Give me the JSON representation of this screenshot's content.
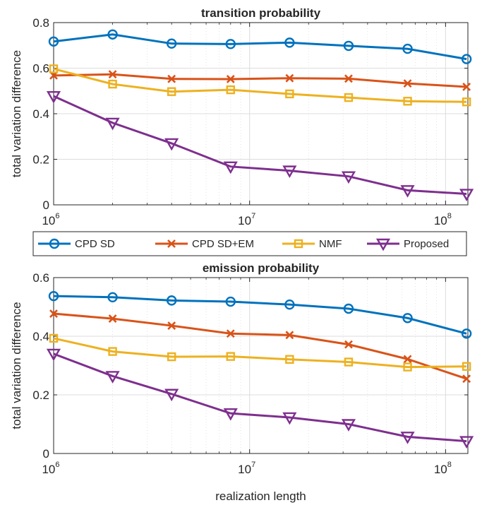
{
  "chart_data": [
    {
      "type": "line",
      "title": "transition probability",
      "xlabel": "",
      "ylabel": "total variation difference",
      "xscale": "log",
      "xlim": [
        1000000,
        130000000
      ],
      "ylim": [
        0,
        0.8
      ],
      "yticks": [
        0,
        0.2,
        0.4,
        0.6,
        0.8
      ],
      "ytick_labels": [
        "0",
        "0.2",
        "0.4",
        "0.6",
        "0.8"
      ],
      "xtick_base": "10",
      "xtick_exponents": [
        "6",
        "7",
        "8"
      ],
      "grid": true,
      "x": [
        1000000,
        2000000,
        4000000,
        8000000,
        16000000,
        32000000,
        64000000,
        128000000
      ],
      "series": [
        {
          "name": "CPD SD",
          "color": "#0072BD",
          "marker": "circle",
          "values": [
            0.717,
            0.748,
            0.708,
            0.706,
            0.712,
            0.698,
            0.685,
            0.64
          ]
        },
        {
          "name": "CPD SD+EM",
          "color": "#D95319",
          "marker": "x",
          "values": [
            0.568,
            0.573,
            0.553,
            0.552,
            0.556,
            0.554,
            0.533,
            0.518
          ]
        },
        {
          "name": "NMF",
          "color": "#EDB120",
          "marker": "square",
          "values": [
            0.597,
            0.53,
            0.497,
            0.505,
            0.487,
            0.471,
            0.455,
            0.452
          ]
        },
        {
          "name": "Proposed",
          "color": "#7E2F8E",
          "marker": "triangle-down",
          "values": [
            0.477,
            0.36,
            0.27,
            0.168,
            0.15,
            0.125,
            0.064,
            0.048
          ]
        }
      ]
    },
    {
      "type": "line",
      "title": "emission probability",
      "xlabel": "realization length",
      "ylabel": "total variation difference",
      "xscale": "log",
      "xlim": [
        1000000,
        130000000
      ],
      "ylim": [
        0,
        0.6
      ],
      "yticks": [
        0,
        0.2,
        0.4,
        0.6
      ],
      "ytick_labels": [
        "0",
        "0.2",
        "0.4",
        "0.6"
      ],
      "xtick_base": "10",
      "xtick_exponents": [
        "6",
        "7",
        "8"
      ],
      "grid": true,
      "x": [
        1000000,
        2000000,
        4000000,
        8000000,
        16000000,
        32000000,
        64000000,
        128000000
      ],
      "series": [
        {
          "name": "CPD SD",
          "color": "#0072BD",
          "marker": "circle",
          "values": [
            0.537,
            0.533,
            0.522,
            0.518,
            0.508,
            0.494,
            0.462,
            0.409
          ]
        },
        {
          "name": "CPD SD+EM",
          "color": "#D95319",
          "marker": "x",
          "values": [
            0.477,
            0.46,
            0.436,
            0.409,
            0.404,
            0.372,
            0.322,
            0.255
          ]
        },
        {
          "name": "NMF",
          "color": "#EDB120",
          "marker": "square",
          "values": [
            0.393,
            0.348,
            0.33,
            0.331,
            0.321,
            0.312,
            0.295,
            0.297
          ]
        },
        {
          "name": "Proposed",
          "color": "#7E2F8E",
          "marker": "triangle-down",
          "values": [
            0.34,
            0.264,
            0.203,
            0.137,
            0.123,
            0.1,
            0.057,
            0.042
          ]
        }
      ]
    }
  ],
  "legend": {
    "placement": "between-plots",
    "entries": [
      "CPD SD",
      "CPD SD+EM",
      "NMF",
      "Proposed"
    ]
  }
}
